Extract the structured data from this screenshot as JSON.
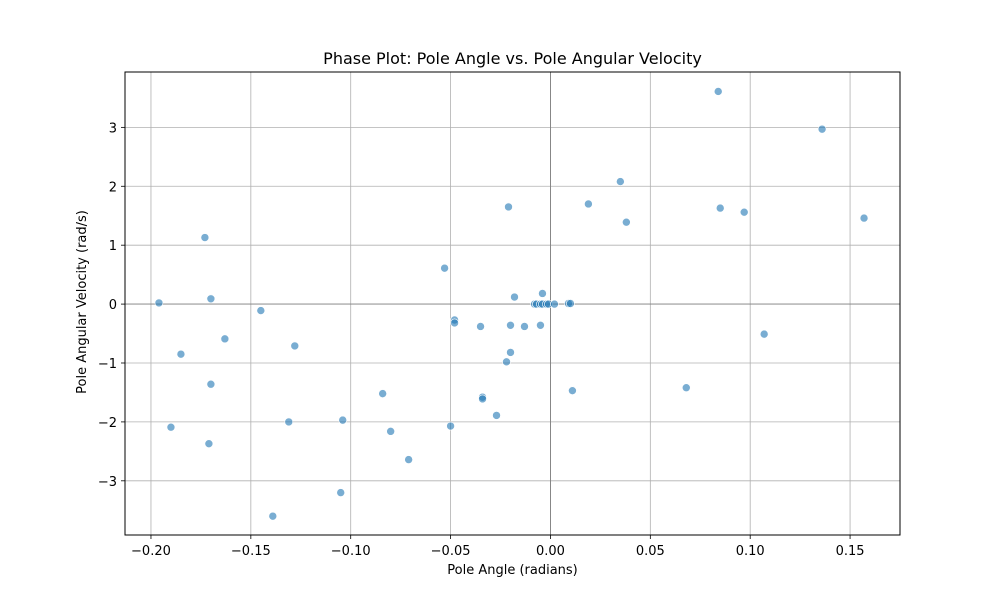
{
  "chart_data": {
    "type": "scatter",
    "title": "Phase Plot: Pole Angle vs. Pole Angular Velocity",
    "xlabel": "Pole Angle (radians)",
    "ylabel": "Pole Angular Velocity (rad/s)",
    "xlim": [
      -0.213,
      0.175
    ],
    "ylim": [
      -3.92,
      3.94
    ],
    "xticks": [
      -0.2,
      -0.15,
      -0.1,
      -0.05,
      0.0,
      0.05,
      0.1,
      0.15
    ],
    "xtick_labels": [
      "−0.20",
      "−0.15",
      "−0.10",
      "−0.05",
      "0.00",
      "0.05",
      "0.10",
      "0.15"
    ],
    "yticks": [
      -3,
      -2,
      -1,
      0,
      1,
      2,
      3
    ],
    "ytick_labels": [
      "−3",
      "−2",
      "−1",
      "0",
      "1",
      "2",
      "3"
    ],
    "grid": true,
    "zero_lines": true,
    "marker_color": "#1f77b4",
    "marker_alpha": 0.6,
    "points": [
      [
        -0.196,
        0.02
      ],
      [
        -0.173,
        1.13
      ],
      [
        -0.17,
        0.09
      ],
      [
        -0.163,
        -0.59
      ],
      [
        -0.185,
        -0.85
      ],
      [
        -0.17,
        -1.36
      ],
      [
        -0.19,
        -2.09
      ],
      [
        -0.171,
        -2.37
      ],
      [
        -0.145,
        -0.11
      ],
      [
        -0.128,
        -0.71
      ],
      [
        -0.131,
        -2.0
      ],
      [
        -0.139,
        -3.6
      ],
      [
        -0.104,
        -1.97
      ],
      [
        -0.105,
        -3.2
      ],
      [
        -0.084,
        -1.52
      ],
      [
        -0.08,
        -2.16
      ],
      [
        -0.071,
        -2.64
      ],
      [
        -0.053,
        0.61
      ],
      [
        -0.048,
        -0.27
      ],
      [
        -0.048,
        -0.32
      ],
      [
        -0.05,
        -2.07
      ],
      [
        -0.035,
        -0.38
      ],
      [
        -0.034,
        -1.58
      ],
      [
        -0.034,
        -1.61
      ],
      [
        -0.027,
        -1.89
      ],
      [
        -0.021,
        1.65
      ],
      [
        -0.02,
        -0.36
      ],
      [
        -0.02,
        -0.82
      ],
      [
        -0.022,
        -0.98
      ],
      [
        -0.018,
        0.12
      ],
      [
        -0.013,
        -0.38
      ],
      [
        -0.008,
        0.0
      ],
      [
        -0.007,
        0.0
      ],
      [
        -0.005,
        0.0
      ],
      [
        -0.005,
        -0.36
      ],
      [
        -0.004,
        0.18
      ],
      [
        -0.004,
        0.0
      ],
      [
        -0.002,
        0.0
      ],
      [
        -0.001,
        0.0
      ],
      [
        0.002,
        0.0
      ],
      [
        0.009,
        0.01
      ],
      [
        0.01,
        0.01
      ],
      [
        0.011,
        -1.47
      ],
      [
        0.019,
        1.7
      ],
      [
        0.035,
        2.08
      ],
      [
        0.038,
        1.39
      ],
      [
        0.068,
        -1.42
      ],
      [
        0.084,
        3.61
      ],
      [
        0.085,
        1.63
      ],
      [
        0.097,
        1.56
      ],
      [
        0.107,
        -0.51
      ],
      [
        0.136,
        2.97
      ],
      [
        0.157,
        1.46
      ]
    ]
  }
}
